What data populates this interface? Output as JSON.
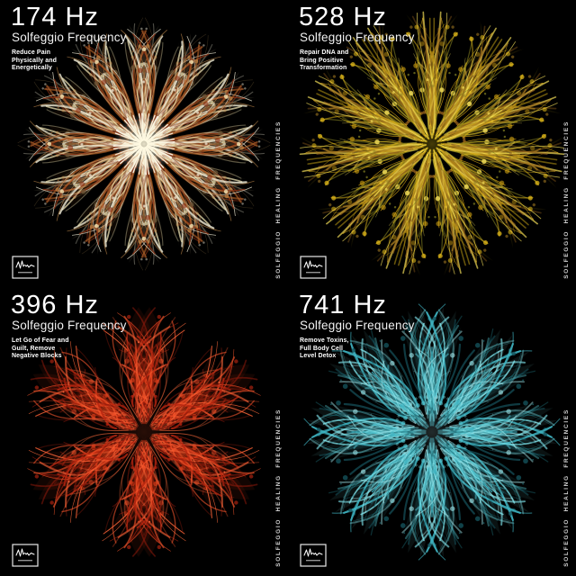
{
  "series_label": "SOLFEGGIO HEALING FREQUENCIES",
  "logo": {
    "icon": "waveform-signature-icon"
  },
  "covers": [
    {
      "frequency": "174 Hz",
      "subtitle": "Solfeggio Frequency",
      "description_lines": [
        "Reduce Pain",
        "Physically and",
        "Energetically"
      ],
      "accent": "#d8c292",
      "mandala": {
        "seed": 174,
        "folds": 12,
        "strokes": 30,
        "dots": 10,
        "radius": 142,
        "palette": [
          "#efe3b4",
          "#c98f4e",
          "#8a2f12",
          "#f8f4de",
          "#6b5534",
          "#b3632a"
        ],
        "glow": "#fff8dc",
        "glowOpacity": 0.9,
        "glowR": 34,
        "hole": 0,
        "rays": 4,
        "rayColor": "#fffdf0"
      }
    },
    {
      "frequency": "528 Hz",
      "subtitle": "Solfeggio Frequency",
      "description_lines": [
        "Repair DNA and",
        "Bring Positive",
        "Transformation"
      ],
      "accent": "#e9b912",
      "mandala": {
        "seed": 528,
        "folds": 11,
        "strokes": 32,
        "dots": 12,
        "radius": 148,
        "palette": [
          "#f2c71b",
          "#d9a814",
          "#79761f",
          "#8a5a1a",
          "#ffe95e",
          "#a87d22"
        ],
        "glow": "#f8d71c",
        "glowOpacity": 0.28,
        "glowR": 20,
        "hole": 6,
        "rays": 0,
        "rayColor": "#ffe95e"
      }
    },
    {
      "frequency": "396 Hz",
      "subtitle": "Solfeggio Frequency",
      "description_lines": [
        "Let Go of Fear and",
        "Guilt, Remove",
        "Negative Blocks"
      ],
      "accent": "#e23c17",
      "mandala": {
        "seed": 396,
        "folds": 6,
        "strokes": 34,
        "dots": 12,
        "radius": 140,
        "palette": [
          "#e8401c",
          "#b42410",
          "#ff6a3c",
          "#7c150a",
          "#f2542b"
        ],
        "glow": "#ff5a2e",
        "glowOpacity": 0.16,
        "glowR": 30,
        "hole": 9,
        "rays": 0,
        "rayColor": "#ff6a3c"
      }
    },
    {
      "frequency": "741 Hz",
      "subtitle": "Solfeggio Frequency",
      "description_lines": [
        "Remove Toxins,",
        "Full Body Cell",
        "Level Detox"
      ],
      "accent": "#3fb8c6",
      "mandala": {
        "seed": 741,
        "folds": 8,
        "strokes": 34,
        "dots": 12,
        "radius": 144,
        "palette": [
          "#3fb6c4",
          "#7fe3ea",
          "#1d6e77",
          "#a8eef2",
          "#145059",
          "#58cdd8"
        ],
        "glow": "#bff3f7",
        "glowOpacity": 0.18,
        "glowR": 26,
        "hole": 5,
        "rays": 0,
        "rayColor": "#a8eef2"
      }
    }
  ]
}
